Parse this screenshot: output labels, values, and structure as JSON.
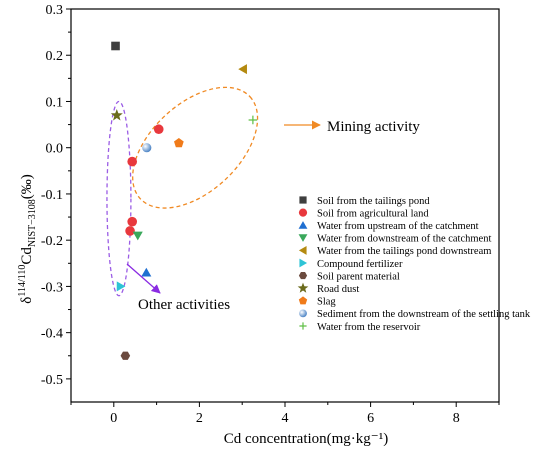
{
  "chart_data": {
    "type": "scatter",
    "xlabel": "Cd concentration(mg·kg⁻¹)",
    "ylabel_parts": {
      "delta": "δ",
      "sup": "114/110",
      "main": "Cd",
      "sub": "NIST−3108",
      "unit": "(‰)"
    },
    "xlim": [
      -1,
      9
    ],
    "ylim": [
      -0.55,
      0.3
    ],
    "x_ticks": [
      0,
      2,
      4,
      6,
      8
    ],
    "x_tick_labels": [
      "0",
      "2",
      "4",
      "6",
      "8"
    ],
    "y_ticks": [
      0.3,
      0.2,
      0.1,
      0.0,
      -0.1,
      -0.2,
      -0.3,
      -0.4,
      -0.5
    ],
    "y_tick_labels": [
      "0.3",
      "0.2",
      "0.1",
      "0.0",
      "-0.1",
      "-0.2",
      "-0.3",
      "-0.4",
      "-0.5"
    ],
    "grid": false,
    "legend_position": "right",
    "series": [
      {
        "name": "Soil from the tailings pond",
        "marker": "square",
        "color": "#3f3f3f",
        "points": [
          [
            0.04,
            0.22
          ]
        ]
      },
      {
        "name": "Soil from agricultural land",
        "marker": "circle",
        "color": "#e8383d",
        "points": [
          [
            1.05,
            0.04
          ],
          [
            0.43,
            -0.03
          ],
          [
            0.43,
            -0.16
          ],
          [
            0.38,
            -0.18
          ]
        ]
      },
      {
        "name": "Water from upstream of the catchment",
        "marker": "triangle-up",
        "color": "#1f6fd1",
        "points": [
          [
            0.76,
            -0.27
          ]
        ]
      },
      {
        "name": "Water from downstream of the catchment",
        "marker": "triangle-down",
        "color": "#3aa85b",
        "points": [
          [
            0.56,
            -0.19
          ]
        ]
      },
      {
        "name": "Water from the tailings pond downstream",
        "marker": "triangle-left",
        "color": "#b48a10",
        "points": [
          [
            3.02,
            0.17
          ]
        ]
      },
      {
        "name": "Compound fertilizer",
        "marker": "triangle-right",
        "color": "#2ec4d6",
        "points": [
          [
            0.16,
            -0.3
          ]
        ]
      },
      {
        "name": "Soil parent material",
        "marker": "hexagon",
        "color": "#6b4a3e",
        "points": [
          [
            0.27,
            -0.45
          ]
        ]
      },
      {
        "name": "Road dust",
        "marker": "star",
        "color": "#6b6b1c",
        "points": [
          [
            0.07,
            0.07
          ]
        ]
      },
      {
        "name": "Slag",
        "marker": "pentagon",
        "color": "#f07b1a",
        "points": [
          [
            1.52,
            0.01
          ]
        ]
      },
      {
        "name": "Sediment from the downstream of the settling tank",
        "marker": "sphere",
        "color": "#6f9fd8",
        "points": [
          [
            0.77,
            0.0
          ]
        ]
      },
      {
        "name": "Water from the reservoir",
        "marker": "plus",
        "color": "#5fbf45",
        "points": [
          [
            3.25,
            0.06
          ]
        ]
      }
    ],
    "groupings": [
      {
        "label": "Mining activity",
        "ellipse_color": "#f08a24",
        "arrow_color": "#f08a24",
        "center": [
          1.9,
          0.0
        ],
        "semi_x": 1.75,
        "semi_y": 0.095,
        "rotation_deg": -43
      },
      {
        "label": "Other activities",
        "ellipse_color": "#9b5de5",
        "arrow_color": "#8a2be2",
        "center": [
          0.12,
          -0.11
        ],
        "semi_x": 0.28,
        "semi_y": 0.21,
        "rotation_deg": 0
      }
    ]
  }
}
